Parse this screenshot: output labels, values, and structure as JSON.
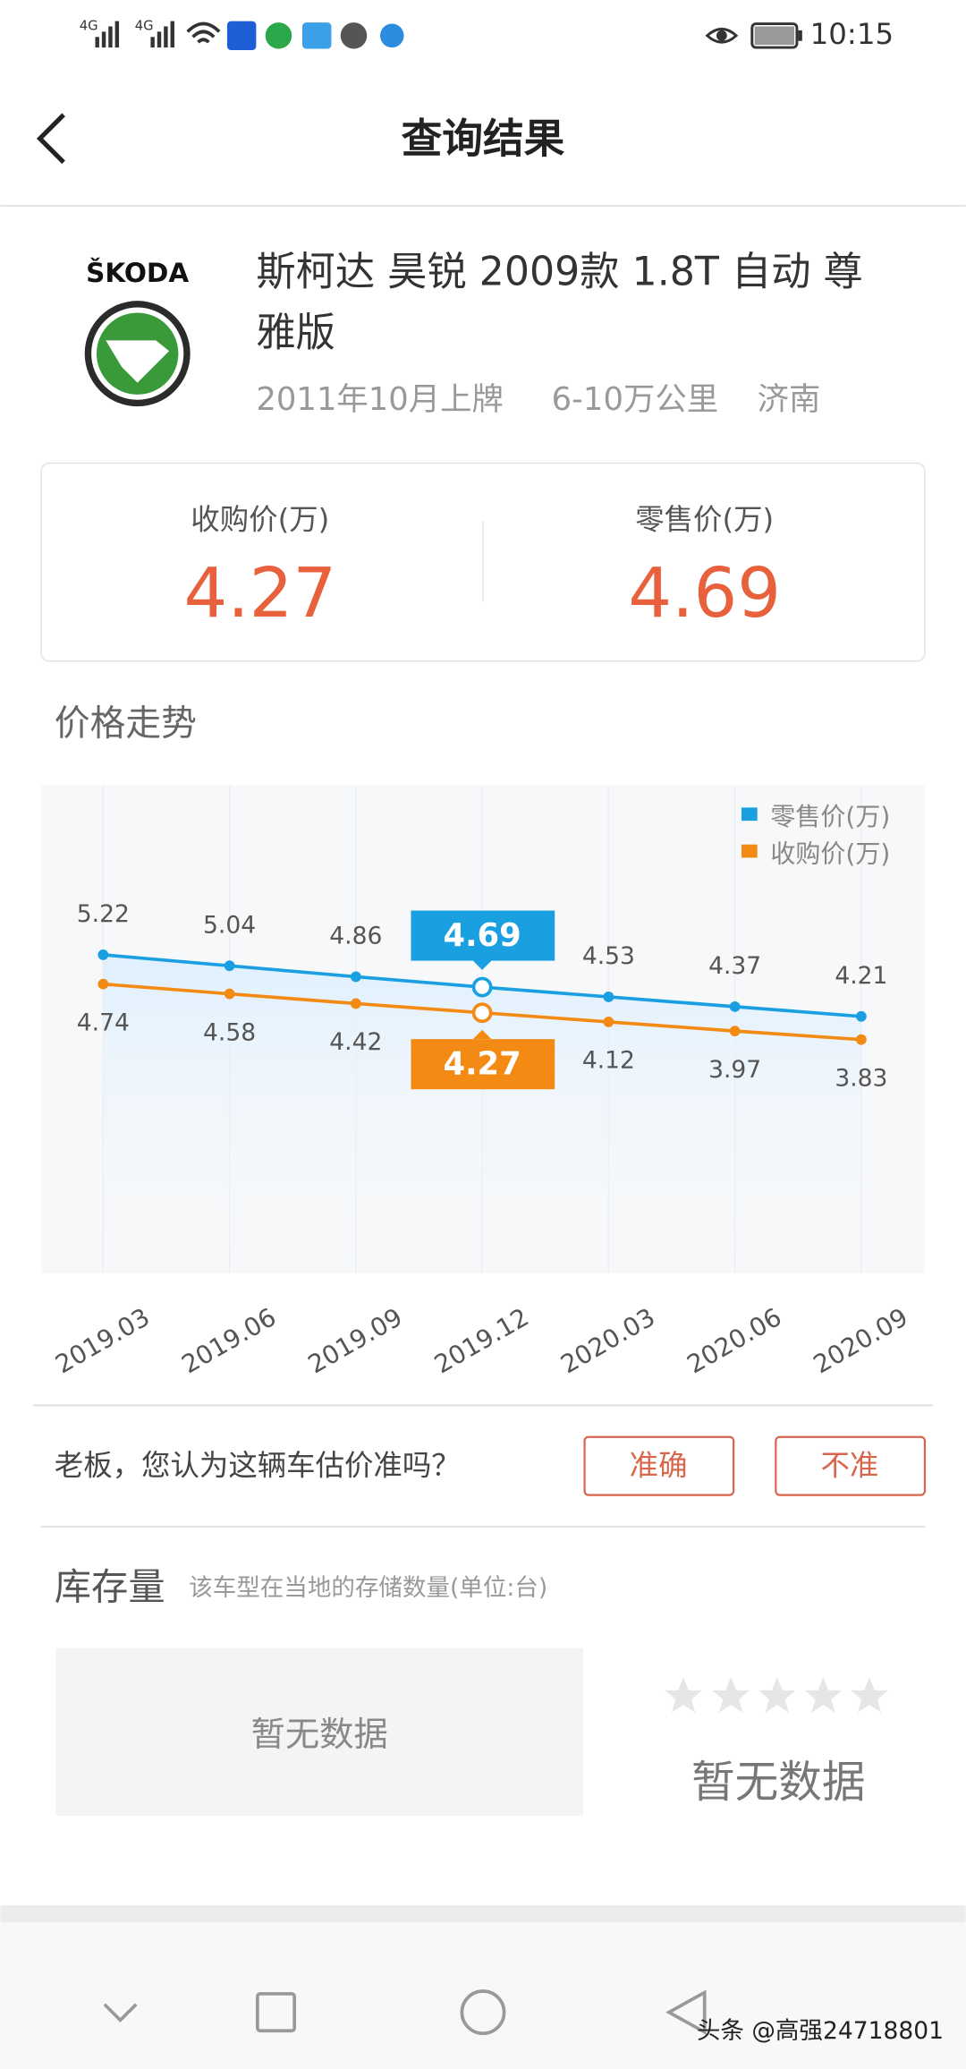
{
  "status_bar": {
    "network": [
      "4G",
      "4G"
    ],
    "time": "10:15"
  },
  "header": {
    "title": "查询结果"
  },
  "car": {
    "brand": "ŠKODA",
    "title": "斯柯达 昊锐 2009款 1.8T 自动 尊雅版",
    "registered": "2011年10月上牌",
    "mileage": "6-10万公里",
    "city": "济南"
  },
  "prices": [
    {
      "label": "收购价(万)",
      "value": 4.27
    },
    {
      "label": "零售价(万)",
      "value": 4.69
    }
  ],
  "trend_title": "价格走势",
  "chart_data": {
    "type": "line",
    "categories": [
      "2019.03",
      "2019.06",
      "2019.09",
      "2019.12",
      "2020.03",
      "2020.06",
      "2020.09"
    ],
    "series": [
      {
        "name": "零售价(万)",
        "color": "#1a9fe0",
        "values": [
          5.22,
          5.04,
          4.86,
          4.69,
          4.53,
          4.37,
          4.21
        ]
      },
      {
        "name": "收购价(万)",
        "color": "#f38a14",
        "values": [
          4.74,
          4.58,
          4.42,
          4.27,
          4.12,
          3.97,
          3.83
        ]
      }
    ],
    "ylim": [
      0,
      8
    ],
    "highlight": 3,
    "legend": "top-right"
  },
  "feedback": {
    "question": "老板，您认为这辆车估价准吗？",
    "buttons": [
      "准确",
      "不准"
    ]
  },
  "inventory": {
    "title": "库存量",
    "note": "该车型在当地的存储数量(单位:台)",
    "empty_left": "暂无数据",
    "empty_right": "暂无数据"
  },
  "watermark": "头条 @高强24718801"
}
